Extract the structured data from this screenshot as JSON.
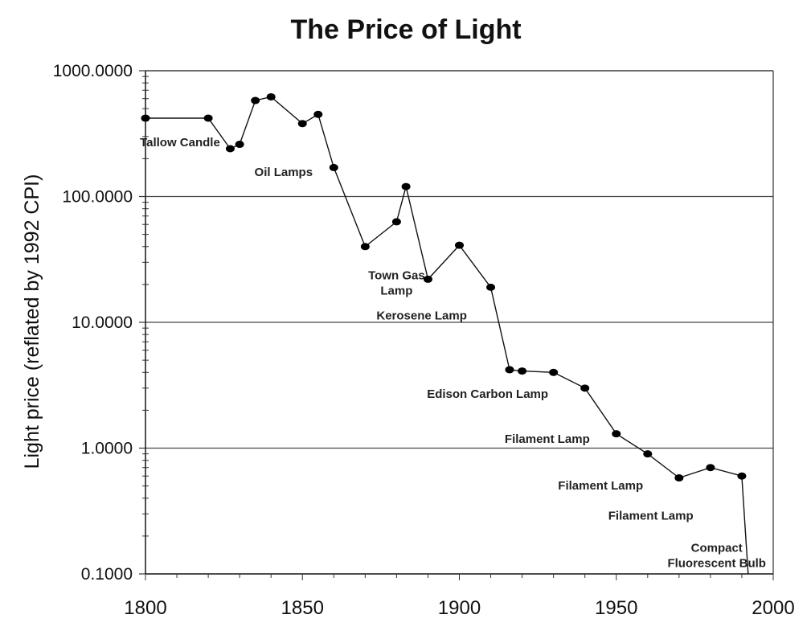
{
  "chart_data": {
    "type": "line",
    "title": "The  Price of Light",
    "xlabel": "",
    "ylabel": "Light price (reflated by 1992 CPI)",
    "y_scale": "log",
    "xlim": [
      1800,
      2000
    ],
    "ylim": [
      0.1,
      1000
    ],
    "x_ticks": [
      "1800",
      "1850",
      "1900",
      "1950",
      "2000"
    ],
    "y_ticks": [
      "0.1000",
      "1.0000",
      "10.0000",
      "100.0000",
      "1000.0000"
    ],
    "grid": "horizontal",
    "legend": "none",
    "series": [
      {
        "x": [
          1800,
          1820,
          1827,
          1830,
          1835,
          1840,
          1850,
          1855,
          1860,
          1870,
          1880,
          1883,
          1890,
          1900,
          1910,
          1916,
          1920,
          1930,
          1940,
          1950,
          1960,
          1970,
          1980,
          1990,
          1992
        ],
        "y": [
          420,
          420,
          240,
          260,
          580,
          620,
          380,
          450,
          170,
          40,
          63,
          120,
          22,
          41,
          19,
          4.2,
          4.1,
          4.0,
          3.0,
          1.3,
          0.9,
          0.58,
          0.7,
          0.6,
          0.1
        ]
      }
    ],
    "annotations": [
      {
        "lines": [
          "Tallow Candle"
        ],
        "x": 1811,
        "y": 250
      },
      {
        "lines": [
          "Oil Lamps"
        ],
        "x": 1844,
        "y": 145
      },
      {
        "lines": [
          "Town Gas",
          "Lamp"
        ],
        "x": 1880,
        "y": 22
      },
      {
        "lines": [
          "Kerosene Lamp"
        ],
        "x": 1888,
        "y": 10.5
      },
      {
        "lines": [
          "Edison Carbon Lamp"
        ],
        "x": 1909,
        "y": 2.5
      },
      {
        "lines": [
          "Filament Lamp"
        ],
        "x": 1928,
        "y": 1.1
      },
      {
        "lines": [
          "Filament Lamp"
        ],
        "x": 1945,
        "y": 0.47
      },
      {
        "lines": [
          "Filament Lamp"
        ],
        "x": 1961,
        "y": 0.27
      },
      {
        "lines": [
          "Compact",
          "Fluorescent Bulb"
        ],
        "x": 1982,
        "y": 0.15
      }
    ]
  }
}
